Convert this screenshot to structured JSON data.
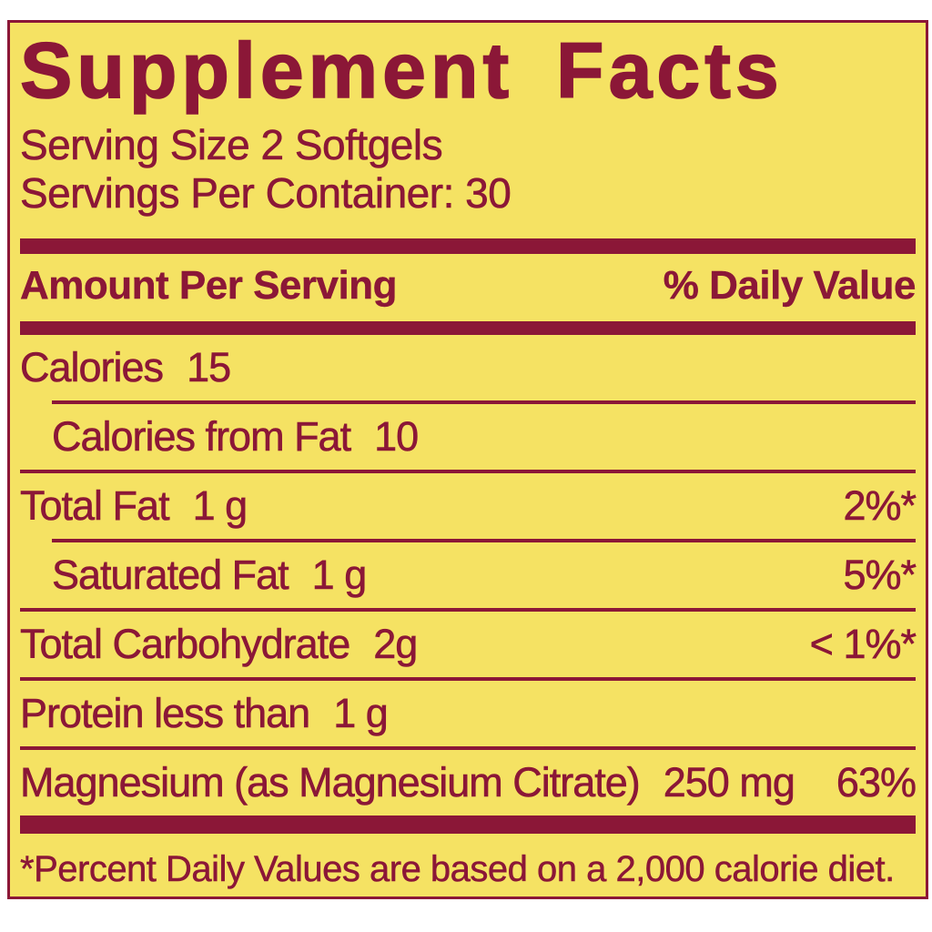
{
  "label": {
    "colors": {
      "page_background": "#FFFFFF",
      "label_background": "#F5E263",
      "ink": "#8B1737"
    },
    "title": "Supplement Facts",
    "serving_size": "Serving Size 2 Softgels",
    "servings_per_container": "Servings Per Container: 30",
    "columns": {
      "amount_header": "Amount Per Serving",
      "daily_value_header": "% Daily Value"
    },
    "rows": [
      {
        "name": "Calories",
        "amount": "15",
        "dv": ""
      },
      {
        "name": "Calories from Fat",
        "amount": "10",
        "dv": ""
      },
      {
        "name": "Total Fat",
        "amount": "1 g",
        "dv": "2%*"
      },
      {
        "name": "Saturated Fat",
        "amount": "1 g",
        "dv": "5%*"
      },
      {
        "name": "Total Carbohydrate",
        "amount": "2g",
        "dv": "< 1%*"
      },
      {
        "name": "Protein less than",
        "amount": "1 g",
        "dv": ""
      },
      {
        "name": "Magnesium (as Magnesium Citrate)",
        "amount": "250 mg",
        "dv": "63%"
      }
    ],
    "footnote": "*Percent Daily Values are based on a 2,000 calorie diet."
  }
}
